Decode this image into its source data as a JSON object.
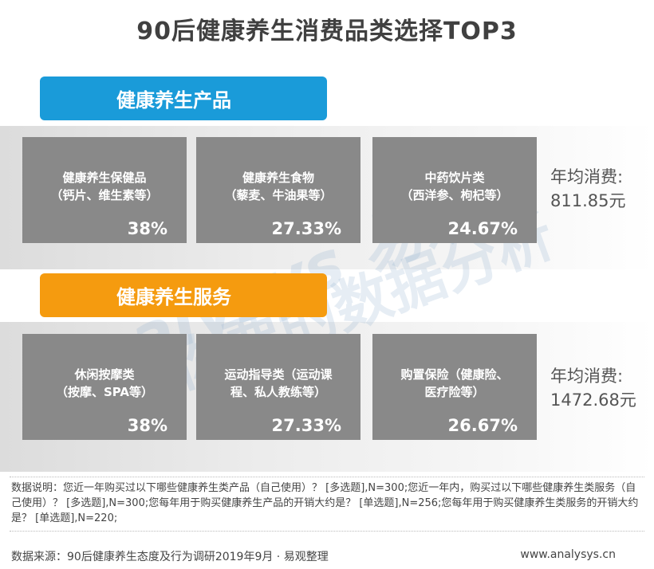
{
  "title": "90后健康养生消费品类选择TOP3",
  "watermark": {
    "en": "analysys 易观",
    "cn": "你要的数据分析"
  },
  "chart_data": {
    "type": "table",
    "title": "90后健康养生消费品类选择TOP3",
    "sections": [
      {
        "label": "健康养生产品",
        "color": "#1a9bd9",
        "avg_label": "年均消费:",
        "avg_value": "811.85元",
        "items": [
          {
            "line1": "健康养生保健品",
            "line2": "（钙片、维生素等）",
            "pct": "38%",
            "value": 38
          },
          {
            "line1": "健康养生食物",
            "line2": "（藜麦、牛油果等）",
            "pct": "27.33%",
            "value": 27.33
          },
          {
            "line1": "中药饮片类",
            "line2": "（西洋参、枸杞等）",
            "pct": "24.67%",
            "value": 24.67
          }
        ]
      },
      {
        "label": "健康养生服务",
        "color": "#f59b0f",
        "avg_label": "年均消费:",
        "avg_value": "1472.68元",
        "items": [
          {
            "line1": "休闲按摩类",
            "line2": "（按摩、SPA等）",
            "pct": "38%",
            "value": 38
          },
          {
            "line1": "运动指导类（运动课",
            "line2": "程、私人教练等）",
            "pct": "27.33%",
            "value": 27.33
          },
          {
            "line1": "购置保险（健康险、",
            "line2": "医疗险等）",
            "pct": "26.67%",
            "value": 26.67
          }
        ]
      }
    ]
  },
  "note": "数据说明：您近一年购买过以下哪些健康养生类产品（自己使用）？ [多选题],N=300;您近一年内，购买过以下哪些健康养生类服务（自己使用）？ [多选题],N=300;您每年用于购买健康养生产品的开销大约是？ [单选题],N=256;您每年用于购买健康养生类服务的开销大约是？ [单选题],N=220;",
  "source": "数据来源：90后健康养生态度及行为调研2019年9月 · 易观整理",
  "site": "www.analysys.cn"
}
